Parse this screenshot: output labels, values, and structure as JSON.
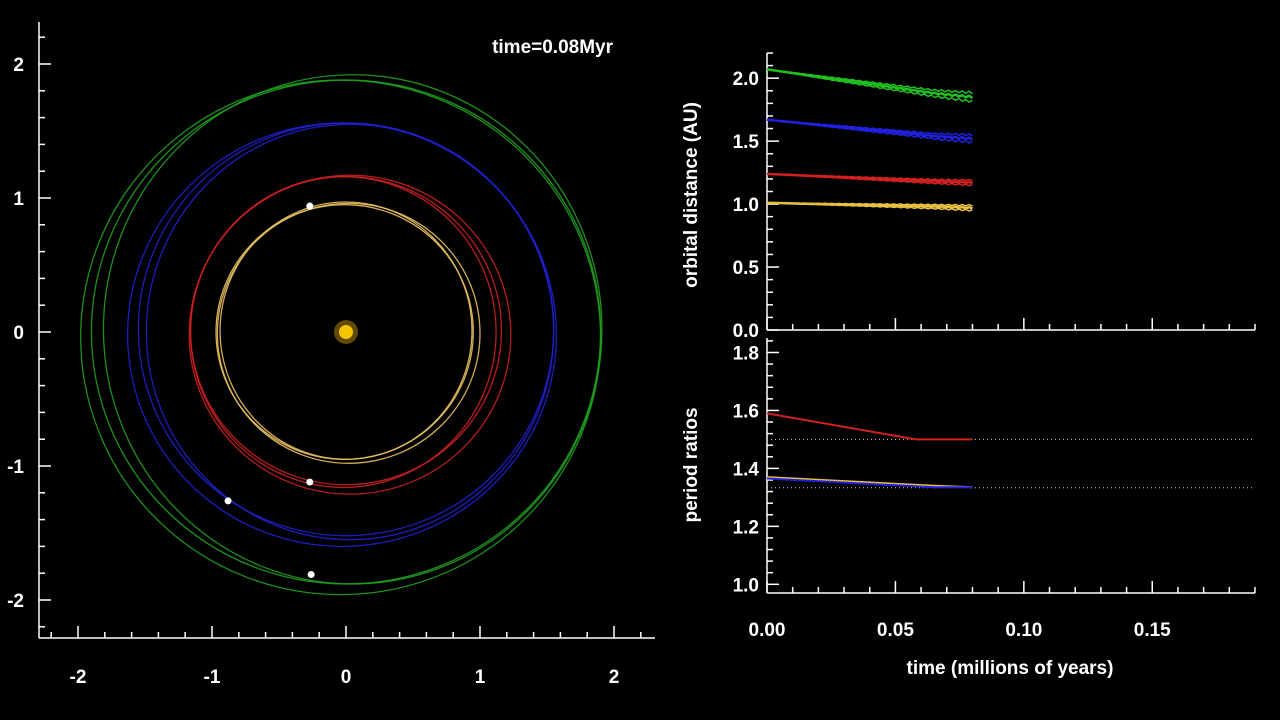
{
  "time_label": "time=0.08Myr",
  "chart_data": [
    {
      "type": "scatter",
      "name": "orbit-view",
      "xlim": [
        -2.3,
        2.3
      ],
      "ylim": [
        -2.3,
        2.3
      ],
      "xticks": [
        -2,
        -1,
        0,
        1,
        2
      ],
      "xtick_labels": [
        "-2",
        "-1",
        "0",
        "1",
        "2"
      ],
      "yticks": [
        -2,
        -1,
        0,
        1,
        2
      ],
      "ytick_labels": [
        "-2",
        "-1",
        "0",
        "1",
        "2"
      ],
      "star": {
        "x": 0,
        "y": 0,
        "color": "#f5c400"
      },
      "orbits": [
        {
          "color": "#e8c060",
          "rings": [
            {
              "a": 0.96,
              "b": 0.95,
              "cx": -0.01,
              "cy": 0.0
            },
            {
              "a": 0.98,
              "b": 0.97,
              "cx": 0.02,
              "cy": -0.01
            },
            {
              "a": 0.94,
              "b": 0.96,
              "cx": 0.0,
              "cy": 0.01
            }
          ]
        },
        {
          "color": "#cc2020",
          "rings": [
            {
              "a": 1.16,
              "b": 1.15,
              "cx": 0.0,
              "cy": 0.01
            },
            {
              "a": 1.2,
              "b": 1.19,
              "cx": 0.03,
              "cy": -0.02
            },
            {
              "a": 1.14,
              "b": 1.16,
              "cx": -0.02,
              "cy": 0.0
            }
          ]
        },
        {
          "color": "#2020d0",
          "rings": [
            {
              "a": 1.55,
              "b": 1.54,
              "cx": 0.0,
              "cy": 0.02
            },
            {
              "a": 1.6,
              "b": 1.58,
              "cx": -0.03,
              "cy": -0.02
            },
            {
              "a": 1.52,
              "b": 1.55,
              "cx": 0.03,
              "cy": 0.0
            }
          ]
        },
        {
          "color": "#20a020",
          "rings": [
            {
              "a": 1.9,
              "b": 1.88,
              "cx": 0.0,
              "cy": 0.0
            },
            {
              "a": 1.94,
              "b": 1.92,
              "cx": -0.04,
              "cy": -0.04
            },
            {
              "a": 1.86,
              "b": 1.9,
              "cx": 0.05,
              "cy": 0.02
            }
          ]
        }
      ],
      "planets": [
        {
          "x": -0.27,
          "y": 0.94
        },
        {
          "x": -0.27,
          "y": -1.12
        },
        {
          "x": -0.88,
          "y": -1.26
        },
        {
          "x": -0.26,
          "y": -1.81
        }
      ]
    },
    {
      "type": "line",
      "name": "orbital-distance",
      "ylabel": "orbital distance (AU)",
      "xlim": [
        0,
        0.19
      ],
      "ylim": [
        0,
        2.2
      ],
      "yticks": [
        0,
        0.5,
        1,
        1.5,
        2
      ],
      "ytick_labels": [
        "0.0",
        "0.5",
        "1.0",
        "1.5",
        "2.0"
      ],
      "series": [
        {
          "color": "#20c020",
          "x": [
            0.0,
            0.065,
            0.08
          ],
          "y": [
            2.07,
            1.88,
            1.85
          ],
          "spread": [
            0.0,
            0.05,
            0.07
          ]
        },
        {
          "color": "#2020e0",
          "x": [
            0.0,
            0.065,
            0.08
          ],
          "y": [
            1.67,
            1.54,
            1.52
          ],
          "spread": [
            0.0,
            0.04,
            0.06
          ]
        },
        {
          "color": "#d02020",
          "x": [
            0.0,
            0.065,
            0.08
          ],
          "y": [
            1.24,
            1.18,
            1.17
          ],
          "spread": [
            0.0,
            0.03,
            0.04
          ]
        },
        {
          "color": "#e8c040",
          "x": [
            0.0,
            0.065,
            0.08
          ],
          "y": [
            1.01,
            0.98,
            0.97
          ],
          "spread": [
            0.0,
            0.03,
            0.04
          ]
        }
      ]
    },
    {
      "type": "line",
      "name": "period-ratios",
      "xlabel": "time (millions of years)",
      "ylabel": "period ratios",
      "xlim": [
        0,
        0.19
      ],
      "ylim": [
        0.97,
        1.85
      ],
      "xticks": [
        0,
        0.05,
        0.1,
        0.15
      ],
      "xtick_labels": [
        "0.00",
        "0.05",
        "0.10",
        "0.15"
      ],
      "yticks": [
        1.0,
        1.2,
        1.4,
        1.6,
        1.8
      ],
      "ytick_labels": [
        "1.0",
        "1.2",
        "1.4",
        "1.6",
        "1.8"
      ],
      "reference_lines": [
        1.5,
        1.3333
      ],
      "series": [
        {
          "color": "#d02020",
          "x": [
            0.0,
            0.058,
            0.08
          ],
          "y": [
            1.59,
            1.5,
            1.5
          ]
        },
        {
          "color": "#e8c040",
          "x": [
            0.0,
            0.065,
            0.08
          ],
          "y": [
            1.37,
            1.34,
            1.335
          ]
        },
        {
          "color": "#2020e0",
          "x": [
            0.0,
            0.065,
            0.08
          ],
          "y": [
            1.365,
            1.335,
            1.335
          ]
        }
      ]
    }
  ]
}
